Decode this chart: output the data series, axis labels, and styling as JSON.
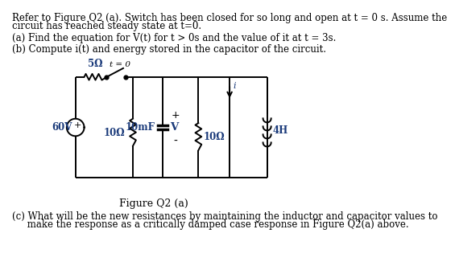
{
  "background_color": "#ffffff",
  "text1a": "Refer to Figure Q2 (a). Switch has been closed for so long and open at t = 0 s. Assume the",
  "text1b": "circuit has reached steady state at t=0.",
  "text2": "(a) Find the equation for V(t) for t > 0s and the value of it at t = 3s.",
  "text3": "(b) Compute i(t) and energy stored in the capacitor of the circuit.",
  "text4": "Figure Q2 (a)",
  "text5a": "(c) What will be the new resistances by maintaining the inductor and capacitor values to",
  "text5b": "     make the response as a critically damped case response in Figure Q2(a) above.",
  "label_5ohm": "5Ω",
  "label_10ohm_left": "10Ω",
  "label_10mF": "10mF",
  "label_V": "V",
  "label_10ohm_right": "10Ω",
  "label_4H": "4H",
  "label_60V": "60V",
  "label_switch": "t = 0",
  "label_i": "i",
  "label_plus": "+",
  "label_minus": "-",
  "lw": 1.4,
  "color": "#000000",
  "label_color": "#1a3a7a",
  "fs_main": 8.5,
  "fs_label": 8.5
}
